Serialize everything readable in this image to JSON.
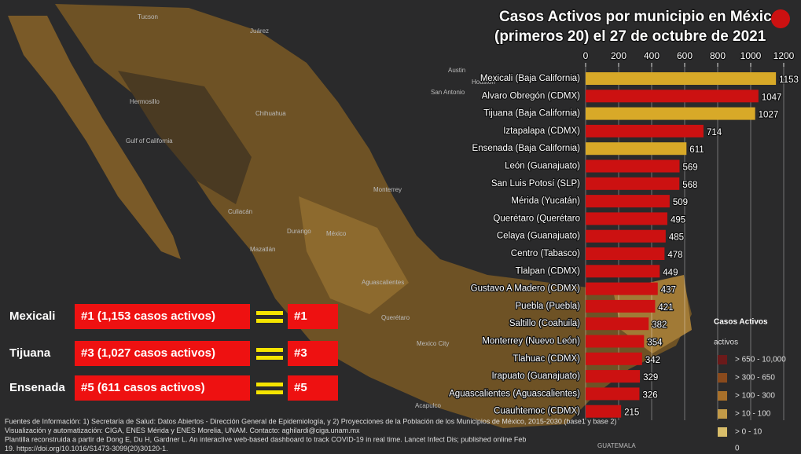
{
  "chart_data": {
    "type": "bar",
    "orientation": "horizontal",
    "title": "Casos Activos por municipio en México",
    "subtitle": "(primeros 20) el 27 de octubre de 2021",
    "categories": [
      "Mexicali (Baja California)",
      "Alvaro Obregón (CDMX)",
      "Tijuana (Baja California)",
      "Iztapalapa (CDMX)",
      "Ensenada (Baja California)",
      "León (Guanajuato)",
      "San Luis Potosí (SLP)",
      "Mérida (Yucatán)",
      "Querétaro (Querétaro",
      "Celaya (Guanajuato)",
      "Centro (Tabasco)",
      "Tlalpan (CDMX)",
      "Gustavo A Madero (CDMX)",
      "Puebla (Puebla)",
      "Saltillo (Coahuila)",
      "Monterrey (Nuevo León)",
      "Tlahuac (CDMX)",
      "Irapuato (Guanajuato)",
      "Aguascalientes (Aguascalientes)",
      "Cuauhtemoc (CDMX)"
    ],
    "values": [
      1153,
      1047,
      1027,
      714,
      611,
      569,
      568,
      509,
      495,
      485,
      478,
      449,
      437,
      421,
      382,
      354,
      342,
      329,
      326,
      215
    ],
    "colors": [
      "#d8a928",
      "#cc1111",
      "#d8a928",
      "#cc1111",
      "#d8a928",
      "#cc1111",
      "#cc1111",
      "#cc1111",
      "#cc1111",
      "#cc1111",
      "#cc1111",
      "#cc1111",
      "#cc1111",
      "#cc1111",
      "#cc1111",
      "#cc1111",
      "#cc1111",
      "#cc1111",
      "#cc1111",
      "#cc1111"
    ],
    "xlim": [
      0,
      1200
    ],
    "xticks": [
      0,
      200,
      400,
      600,
      800,
      1000,
      1200
    ],
    "grid": true
  },
  "callouts": [
    {
      "city": "Mexicali",
      "text": "#1 (1,153 casos activos)",
      "rank": "#1"
    },
    {
      "city": "Tijuana",
      "text": "#3 (1,027 casos activos)",
      "rank": "#3"
    },
    {
      "city": "Ensenada",
      "text": "#5 (611 casos activos)",
      "rank": "#5"
    }
  ],
  "legend": {
    "title": "Casos Activos",
    "subtitle": "activos",
    "items": [
      {
        "label": "> 650 - 10,000",
        "color": "#6b1a1a"
      },
      {
        "label": "> 300 - 650",
        "color": "#8a4a1c"
      },
      {
        "label": "> 100 - 300",
        "color": "#a8702a"
      },
      {
        "label": "> 10 - 100",
        "color": "#c29a48"
      },
      {
        "label": "> 0 - 10",
        "color": "#d8bd6a"
      }
    ],
    "zero": "0"
  },
  "map_labels": [
    "Tucson",
    "Juárez",
    "Hermosillo",
    "Chihuahua",
    "Gulf of California",
    "Culiacán",
    "Durango",
    "Monterrey",
    "México",
    "Mazatlán",
    "Aguascalientes",
    "Querétaro",
    "Mexico City",
    "Austin",
    "San Antonio",
    "Houston",
    "Acapulco",
    "GUATEMALA"
  ],
  "footer": [
    "Fuentes de Información: 1) Secretaría de Salud: Datos Abiertos - Dirección General de Epidemiología, y 2) Proyecciones de la Población de los Municipios de México, 2015-2030 (base1 y base 2)",
    "Visualización y automatización: CIGA, ENES Mérida y ENES Morelia, UNAM. Contacto: aghilardi@ciga.unam.mx",
    "Plantilla reconstruida a partir de Dong E, Du H, Gardner L. An interactive web-based dashboard to track COVID-19 in real time. Lancet Infect Dis; published online Feb",
    "19. https://doi.org/10.1016/S1473-3099(20)30120-1."
  ]
}
